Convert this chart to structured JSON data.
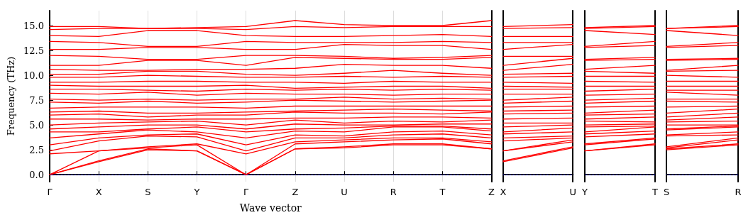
{
  "chart_data": [
    {
      "type": "line",
      "ylabel": "Frequency (THz)",
      "xlabel": "Wave vector",
      "categories": [
        "Γ",
        "X",
        "S",
        "Y",
        "Γ",
        "Z",
        "U",
        "R",
        "T",
        "Z"
      ],
      "ylim": [
        -0.7,
        16.5
      ],
      "yticks": [
        {
          "value": 0,
          "label": "0.0"
        },
        {
          "value": 2.5,
          "label": "2.5"
        },
        {
          "value": 5,
          "label": "5.0"
        },
        {
          "value": 7.5,
          "label": "7.5"
        },
        {
          "value": 10,
          "label": "10.0"
        },
        {
          "value": 12.5,
          "label": "12.5"
        },
        {
          "value": 15,
          "label": "15.0"
        }
      ],
      "grid": "x",
      "marker": "none",
      "line_style": "solid",
      "ref_lines": [
        {
          "axis": "y",
          "value": 0,
          "color": "#0000ff",
          "line_style": "dotted"
        }
      ],
      "series": [
        {
          "color": "#ff0000",
          "values": [
            0,
            1.3,
            2.5,
            2.4,
            0,
            2.6,
            2.7,
            3.0,
            3.0,
            2.6
          ]
        },
        {
          "color": "#ff0000",
          "values": [
            0,
            1.4,
            2.6,
            2.4,
            0,
            2.6,
            2.8,
            3.1,
            3.1,
            2.6
          ]
        },
        {
          "color": "#ff0000",
          "values": [
            0,
            2.4,
            2.7,
            3.0,
            0,
            3.1,
            3.3,
            3.5,
            3.6,
            3.1
          ]
        },
        {
          "color": "#ff0000",
          "values": [
            2.1,
            2.4,
            2.8,
            3.1,
            2.1,
            3.3,
            3.5,
            3.7,
            3.7,
            3.3
          ]
        },
        {
          "color": "#ff0000",
          "values": [
            2.4,
            3.4,
            3.9,
            3.8,
            2.4,
            3.7,
            3.7,
            4.0,
            4.1,
            3.7
          ]
        },
        {
          "color": "#ff0000",
          "values": [
            3.0,
            3.7,
            4.0,
            4.1,
            3.0,
            4.0,
            3.9,
            4.3,
            4.4,
            4.0
          ]
        },
        {
          "color": "#ff0000",
          "values": [
            3.7,
            4.1,
            4.5,
            4.3,
            3.7,
            4.4,
            4.3,
            4.8,
            4.8,
            4.4
          ]
        },
        {
          "color": "#ff0000",
          "values": [
            4.3,
            4.3,
            4.6,
            4.8,
            4.3,
            4.6,
            4.7,
            4.9,
            4.9,
            4.6
          ]
        },
        {
          "color": "#ff0000",
          "values": [
            4.6,
            4.8,
            5.0,
            5.0,
            4.6,
            5.1,
            5.0,
            5.0,
            5.1,
            5.1
          ]
        },
        {
          "color": "#ff0000",
          "values": [
            5.0,
            5.2,
            5.3,
            5.4,
            5.0,
            5.5,
            5.2,
            5.4,
            5.3,
            5.5
          ]
        },
        {
          "color": "#ff0000",
          "values": [
            5.6,
            5.6,
            5.5,
            5.6,
            5.6,
            5.7,
            5.7,
            5.8,
            5.8,
            5.7
          ]
        },
        {
          "color": "#ff0000",
          "values": [
            6.0,
            6.1,
            5.8,
            6.0,
            6.0,
            6.3,
            6.2,
            6.2,
            6.1,
            6.3
          ]
        },
        {
          "color": "#ff0000",
          "values": [
            6.3,
            6.4,
            6.2,
            6.2,
            6.3,
            6.4,
            6.5,
            6.6,
            6.5,
            6.4
          ]
        },
        {
          "color": "#ff0000",
          "values": [
            6.7,
            6.8,
            6.8,
            6.8,
            6.7,
            6.9,
            6.9,
            6.9,
            6.9,
            6.9
          ]
        },
        {
          "color": "#ff0000",
          "values": [
            7.3,
            7.2,
            7.4,
            7.2,
            7.3,
            7.5,
            7.4,
            7.3,
            7.4,
            7.5
          ]
        },
        {
          "color": "#ff0000",
          "values": [
            7.6,
            7.5,
            7.6,
            7.5,
            7.6,
            7.6,
            7.8,
            7.6,
            7.7,
            7.6
          ]
        },
        {
          "color": "#ff0000",
          "values": [
            8.2,
            8.1,
            8.3,
            8.0,
            8.2,
            8.1,
            8.1,
            8.0,
            8.1,
            8.1
          ]
        },
        {
          "color": "#ff0000",
          "values": [
            8.6,
            8.6,
            8.5,
            8.4,
            8.6,
            8.5,
            8.6,
            8.5,
            8.6,
            8.5
          ]
        },
        {
          "color": "#ff0000",
          "values": [
            9.0,
            8.9,
            8.9,
            8.9,
            9.0,
            8.7,
            8.8,
            8.9,
            8.9,
            8.7
          ]
        },
        {
          "color": "#ff0000",
          "values": [
            9.3,
            9.3,
            9.4,
            9.4,
            9.3,
            9.3,
            9.2,
            9.4,
            9.3,
            9.3
          ]
        },
        {
          "color": "#ff0000",
          "values": [
            9.8,
            9.8,
            10.0,
            9.9,
            9.8,
            9.8,
            9.9,
            9.8,
            9.9,
            9.8
          ]
        },
        {
          "color": "#ff0000",
          "values": [
            10.1,
            10.1,
            10.4,
            10.4,
            10.1,
            10.0,
            10.2,
            10.5,
            10.2,
            10.0
          ]
        },
        {
          "color": "#ff0000",
          "values": [
            10.6,
            10.5,
            10.5,
            10.6,
            10.6,
            10.7,
            11.1,
            11.0,
            11.0,
            10.7
          ]
        },
        {
          "color": "#ff0000",
          "values": [
            11.0,
            11.0,
            11.5,
            11.5,
            11.0,
            11.8,
            11.7,
            11.6,
            11.6,
            11.8
          ]
        },
        {
          "color": "#ff0000",
          "values": [
            12.0,
            11.9,
            11.6,
            11.6,
            12.0,
            12.0,
            11.9,
            11.7,
            11.8,
            12.0
          ]
        },
        {
          "color": "#ff0000",
          "values": [
            12.6,
            12.6,
            12.8,
            12.8,
            12.6,
            12.6,
            13.1,
            13.0,
            13.0,
            12.6
          ]
        },
        {
          "color": "#ff0000",
          "values": [
            13.4,
            13.3,
            12.9,
            12.9,
            13.4,
            13.3,
            13.3,
            13.3,
            13.4,
            13.3
          ]
        },
        {
          "color": "#ff0000",
          "values": [
            14.0,
            13.9,
            14.5,
            14.5,
            14.0,
            13.9,
            13.9,
            14.0,
            14.1,
            13.9
          ]
        },
        {
          "color": "#ff0000",
          "values": [
            14.6,
            14.7,
            14.7,
            14.7,
            14.6,
            14.9,
            14.8,
            14.9,
            14.9,
            14.9
          ]
        },
        {
          "color": "#ff0000",
          "values": [
            14.9,
            14.9,
            14.7,
            14.8,
            14.9,
            15.5,
            15.1,
            15.0,
            15.0,
            15.5
          ]
        }
      ]
    },
    {
      "type": "line",
      "categories": [
        "X",
        "U"
      ],
      "ylim": [
        -0.7,
        16.5
      ],
      "tick_labels": "x",
      "marker": "none",
      "line_style": "solid",
      "ref_lines": [
        {
          "axis": "y",
          "value": 0,
          "color": "#0000ff",
          "line_style": "dotted"
        }
      ],
      "series": [
        {
          "color": "#ff0000",
          "values": [
            1.3,
            2.7
          ]
        },
        {
          "color": "#ff0000",
          "values": [
            1.4,
            2.8
          ]
        },
        {
          "color": "#ff0000",
          "values": [
            2.4,
            3.3
          ]
        },
        {
          "color": "#ff0000",
          "values": [
            2.4,
            3.5
          ]
        },
        {
          "color": "#ff0000",
          "values": [
            3.4,
            3.7
          ]
        },
        {
          "color": "#ff0000",
          "values": [
            3.7,
            3.9
          ]
        },
        {
          "color": "#ff0000",
          "values": [
            4.1,
            4.3
          ]
        },
        {
          "color": "#ff0000",
          "values": [
            4.3,
            4.7
          ]
        },
        {
          "color": "#ff0000",
          "values": [
            4.8,
            5.0
          ]
        },
        {
          "color": "#ff0000",
          "values": [
            5.2,
            5.2
          ]
        },
        {
          "color": "#ff0000",
          "values": [
            5.6,
            5.7
          ]
        },
        {
          "color": "#ff0000",
          "values": [
            6.1,
            6.2
          ]
        },
        {
          "color": "#ff0000",
          "values": [
            6.4,
            6.5
          ]
        },
        {
          "color": "#ff0000",
          "values": [
            6.8,
            6.9
          ]
        },
        {
          "color": "#ff0000",
          "values": [
            7.2,
            7.4
          ]
        },
        {
          "color": "#ff0000",
          "values": [
            7.5,
            7.8
          ]
        },
        {
          "color": "#ff0000",
          "values": [
            8.1,
            8.1
          ]
        },
        {
          "color": "#ff0000",
          "values": [
            8.6,
            8.6
          ]
        },
        {
          "color": "#ff0000",
          "values": [
            8.9,
            8.8
          ]
        },
        {
          "color": "#ff0000",
          "values": [
            9.3,
            9.2
          ]
        },
        {
          "color": "#ff0000",
          "values": [
            9.8,
            9.9
          ]
        },
        {
          "color": "#ff0000",
          "values": [
            10.1,
            10.2
          ]
        },
        {
          "color": "#ff0000",
          "values": [
            10.5,
            11.1
          ]
        },
        {
          "color": "#ff0000",
          "values": [
            11.0,
            11.7
          ]
        },
        {
          "color": "#ff0000",
          "values": [
            11.9,
            11.9
          ]
        },
        {
          "color": "#ff0000",
          "values": [
            12.6,
            13.1
          ]
        },
        {
          "color": "#ff0000",
          "values": [
            13.3,
            13.3
          ]
        },
        {
          "color": "#ff0000",
          "values": [
            13.9,
            13.9
          ]
        },
        {
          "color": "#ff0000",
          "values": [
            14.7,
            14.8
          ]
        },
        {
          "color": "#ff0000",
          "values": [
            14.9,
            15.1
          ]
        }
      ]
    },
    {
      "type": "line",
      "categories": [
        "Y",
        "T"
      ],
      "ylim": [
        -0.7,
        16.5
      ],
      "tick_labels": "x",
      "marker": "none",
      "line_style": "solid",
      "ref_lines": [
        {
          "axis": "y",
          "value": 0,
          "color": "#0000ff",
          "line_style": "dotted"
        }
      ],
      "series": [
        {
          "color": "#ff0000",
          "values": [
            2.4,
            3.0
          ]
        },
        {
          "color": "#ff0000",
          "values": [
            2.4,
            3.1
          ]
        },
        {
          "color": "#ff0000",
          "values": [
            3.0,
            3.6
          ]
        },
        {
          "color": "#ff0000",
          "values": [
            3.1,
            3.7
          ]
        },
        {
          "color": "#ff0000",
          "values": [
            3.8,
            4.1
          ]
        },
        {
          "color": "#ff0000",
          "values": [
            4.1,
            4.4
          ]
        },
        {
          "color": "#ff0000",
          "values": [
            4.3,
            4.8
          ]
        },
        {
          "color": "#ff0000",
          "values": [
            4.8,
            4.9
          ]
        },
        {
          "color": "#ff0000",
          "values": [
            5.0,
            5.1
          ]
        },
        {
          "color": "#ff0000",
          "values": [
            5.4,
            5.3
          ]
        },
        {
          "color": "#ff0000",
          "values": [
            5.6,
            5.8
          ]
        },
        {
          "color": "#ff0000",
          "values": [
            6.0,
            6.1
          ]
        },
        {
          "color": "#ff0000",
          "values": [
            6.2,
            6.5
          ]
        },
        {
          "color": "#ff0000",
          "values": [
            6.8,
            6.9
          ]
        },
        {
          "color": "#ff0000",
          "values": [
            7.2,
            7.4
          ]
        },
        {
          "color": "#ff0000",
          "values": [
            7.5,
            7.7
          ]
        },
        {
          "color": "#ff0000",
          "values": [
            8.0,
            8.1
          ]
        },
        {
          "color": "#ff0000",
          "values": [
            8.4,
            8.6
          ]
        },
        {
          "color": "#ff0000",
          "values": [
            8.9,
            8.9
          ]
        },
        {
          "color": "#ff0000",
          "values": [
            9.4,
            9.3
          ]
        },
        {
          "color": "#ff0000",
          "values": [
            9.9,
            9.9
          ]
        },
        {
          "color": "#ff0000",
          "values": [
            10.4,
            10.2
          ]
        },
        {
          "color": "#ff0000",
          "values": [
            10.6,
            11.0
          ]
        },
        {
          "color": "#ff0000",
          "values": [
            11.5,
            11.6
          ]
        },
        {
          "color": "#ff0000",
          "values": [
            11.6,
            11.8
          ]
        },
        {
          "color": "#ff0000",
          "values": [
            12.8,
            13.0
          ]
        },
        {
          "color": "#ff0000",
          "values": [
            12.9,
            13.4
          ]
        },
        {
          "color": "#ff0000",
          "values": [
            14.5,
            14.1
          ]
        },
        {
          "color": "#ff0000",
          "values": [
            14.7,
            14.9
          ]
        },
        {
          "color": "#ff0000",
          "values": [
            14.8,
            15.0
          ]
        }
      ]
    },
    {
      "type": "line",
      "categories": [
        "S",
        "R"
      ],
      "ylim": [
        -0.7,
        16.5
      ],
      "tick_labels": "x",
      "marker": "none",
      "line_style": "solid",
      "ref_lines": [
        {
          "axis": "y",
          "value": 0,
          "color": "#0000ff",
          "line_style": "dotted"
        }
      ],
      "series": [
        {
          "color": "#ff0000",
          "values": [
            2.5,
            3.0
          ]
        },
        {
          "color": "#ff0000",
          "values": [
            2.6,
            3.1
          ]
        },
        {
          "color": "#ff0000",
          "values": [
            2.7,
            3.5
          ]
        },
        {
          "color": "#ff0000",
          "values": [
            2.8,
            3.7
          ]
        },
        {
          "color": "#ff0000",
          "values": [
            3.9,
            4.0
          ]
        },
        {
          "color": "#ff0000",
          "values": [
            4.0,
            4.3
          ]
        },
        {
          "color": "#ff0000",
          "values": [
            4.5,
            4.8
          ]
        },
        {
          "color": "#ff0000",
          "values": [
            4.6,
            4.9
          ]
        },
        {
          "color": "#ff0000",
          "values": [
            5.0,
            5.0
          ]
        },
        {
          "color": "#ff0000",
          "values": [
            5.3,
            5.4
          ]
        },
        {
          "color": "#ff0000",
          "values": [
            5.5,
            5.8
          ]
        },
        {
          "color": "#ff0000",
          "values": [
            5.8,
            6.2
          ]
        },
        {
          "color": "#ff0000",
          "values": [
            6.2,
            6.6
          ]
        },
        {
          "color": "#ff0000",
          "values": [
            6.8,
            6.9
          ]
        },
        {
          "color": "#ff0000",
          "values": [
            7.4,
            7.3
          ]
        },
        {
          "color": "#ff0000",
          "values": [
            7.6,
            7.6
          ]
        },
        {
          "color": "#ff0000",
          "values": [
            8.3,
            8.0
          ]
        },
        {
          "color": "#ff0000",
          "values": [
            8.5,
            8.5
          ]
        },
        {
          "color": "#ff0000",
          "values": [
            8.9,
            8.9
          ]
        },
        {
          "color": "#ff0000",
          "values": [
            9.4,
            9.4
          ]
        },
        {
          "color": "#ff0000",
          "values": [
            10.0,
            9.8
          ]
        },
        {
          "color": "#ff0000",
          "values": [
            10.4,
            10.5
          ]
        },
        {
          "color": "#ff0000",
          "values": [
            10.5,
            11.0
          ]
        },
        {
          "color": "#ff0000",
          "values": [
            11.5,
            11.6
          ]
        },
        {
          "color": "#ff0000",
          "values": [
            11.6,
            11.7
          ]
        },
        {
          "color": "#ff0000",
          "values": [
            12.8,
            13.0
          ]
        },
        {
          "color": "#ff0000",
          "values": [
            12.9,
            13.3
          ]
        },
        {
          "color": "#ff0000",
          "values": [
            14.5,
            14.0
          ]
        },
        {
          "color": "#ff0000",
          "values": [
            14.7,
            14.9
          ]
        },
        {
          "color": "#ff0000",
          "values": [
            14.7,
            15.0
          ]
        }
      ]
    }
  ]
}
